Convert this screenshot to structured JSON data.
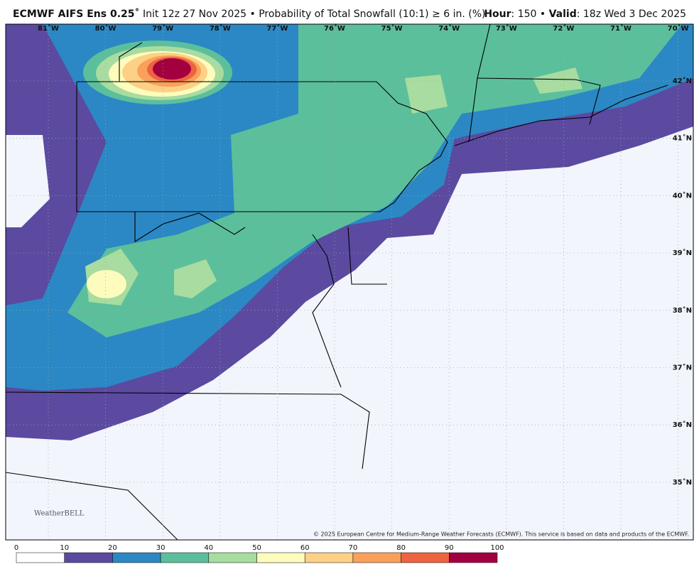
{
  "header": {
    "left_bold": "ECMWF AIFS Ens 0.25˚",
    "left_text": "Init 12z 27 Nov 2025 • Probability of Total Snowfall (10:1) ≥ 6 in. (%)",
    "hour_key": "Hour",
    "hour_text": ": 150 • ",
    "valid_key": "Valid",
    "valid_text": ": 18z Wed 3 Dec 2025"
  },
  "map": {
    "lon_labels": [
      "81˚W",
      "80˚W",
      "79˚W",
      "78˚W",
      "77˚W",
      "76˚W",
      "75˚W",
      "74˚W",
      "73˚W",
      "72˚W",
      "71˚W",
      "70˚W"
    ],
    "lat_labels": [
      "42˚N",
      "41˚N",
      "40˚N",
      "39˚N",
      "38˚N",
      "37˚N",
      "36˚N",
      "35˚N"
    ],
    "logo": "WeatherBELL",
    "copyright": "© 2025 European Centre for Medium-Range Weather Forecasts (ECMWF). This service is based on data and products of the ECMWF."
  },
  "colorbar": {
    "ticks": [
      0,
      10,
      20,
      30,
      40,
      50,
      60,
      70,
      80,
      90,
      100
    ],
    "colors": [
      "#ffffff",
      "#5b4aa0",
      "#2b88c4",
      "#5cbf9c",
      "#a8dca0",
      "#fefcbc",
      "#fdd085",
      "#f9a15a",
      "#ee6340",
      "#a3003f"
    ]
  }
}
